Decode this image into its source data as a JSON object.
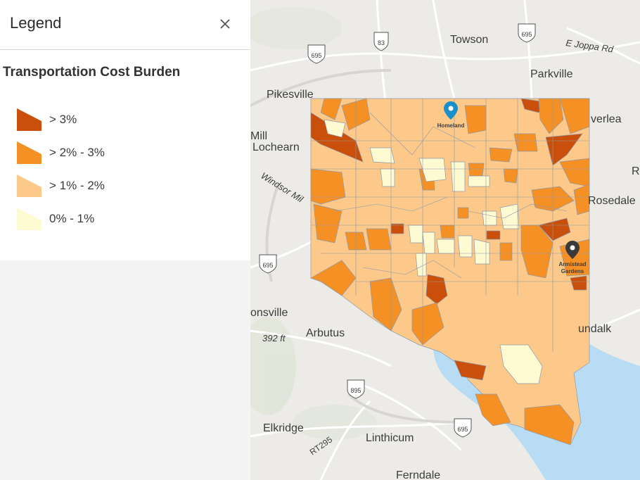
{
  "legend": {
    "title": "Legend",
    "close_icon": "close-icon",
    "layer_title": "Transportation Cost Burden",
    "items": [
      {
        "label": "> 3%",
        "color": "#c94f0b"
      },
      {
        "label": "> 2% - 3%",
        "color": "#f59024"
      },
      {
        "label": "> 1% - 2%",
        "color": "#fdc98a"
      },
      {
        "label": "0% - 1%",
        "color": "#fefbd3"
      }
    ]
  },
  "map": {
    "places": {
      "towson": "Towson",
      "parkville": "Parkville",
      "pikesville": "Pikesville",
      "mill_lochearn_1": "Mill",
      "mill_lochearn_2": "Lochearn",
      "windsor_mill": "Windsor Mil",
      "overlea": "verlea",
      "rosedale": "Rosedale",
      "r_edge": "R",
      "catonsville": "onsville",
      "arbutus": "Arbutus",
      "elevation": "392 ft",
      "dundalk": "undalk",
      "elkridge": "Elkridge",
      "linthicum": "Linthicum",
      "ferndale": "Ferndale",
      "e_joppa": "E Joppa Rd",
      "rt295": "RT295"
    },
    "shields": {
      "i83": "83",
      "i695_top": "695",
      "i695_left": "695",
      "i695_mid": "695",
      "i895": "895",
      "i695_bottom": "695"
    },
    "markers": {
      "homeland": "Homeland",
      "armistead_1": "Armistead",
      "armistead_2": "Gardens"
    }
  }
}
